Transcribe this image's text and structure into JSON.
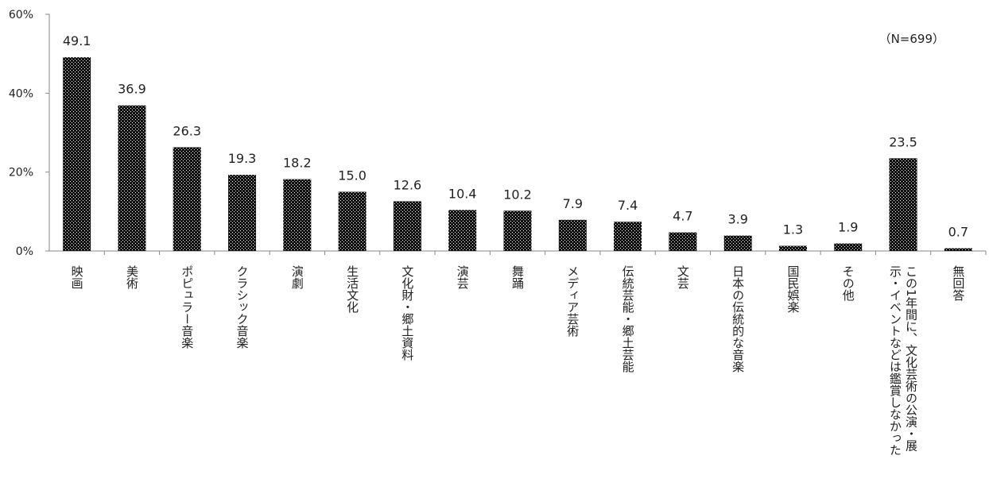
{
  "chart_data": {
    "type": "bar",
    "title": "",
    "xlabel": "",
    "ylabel": "",
    "note": "（N=699）",
    "ylim": [
      0,
      60
    ],
    "yticks": [
      0,
      20,
      40,
      60
    ],
    "ytick_labels": [
      "0%",
      "20%",
      "40%",
      "60%"
    ],
    "grid": false,
    "categories": [
      "映画",
      "美術",
      "ポピュラー音楽",
      "クラシック音楽",
      "演劇",
      "生活文化",
      "文化財・郷土資料",
      "演芸",
      "舞踊",
      "メディア芸術",
      "伝統芸能・郷土芸能",
      "文芸",
      "日本の伝統的な音楽",
      "国民娯楽",
      "その他",
      "この1年間に、文化芸術の公演・展示・イベントなどは鑑賞しなかった",
      "無回答"
    ],
    "category_lines": [
      [
        "映画"
      ],
      [
        "美術"
      ],
      [
        "ポピュラー音楽"
      ],
      [
        "クラシック音楽"
      ],
      [
        "演劇"
      ],
      [
        "生活文化"
      ],
      [
        "文化財・郷土資料"
      ],
      [
        "演芸"
      ],
      [
        "舞踊"
      ],
      [
        "メディア芸術"
      ],
      [
        "伝統芸能・郷土芸能"
      ],
      [
        "文芸"
      ],
      [
        "日本の伝統的な音楽"
      ],
      [
        "国民娯楽"
      ],
      [
        "その他"
      ],
      [
        "この1年間に、文化芸術の公演・展",
        "示・イベントなどは鑑賞しなかった"
      ],
      [
        "無回答"
      ]
    ],
    "values": [
      49.1,
      36.9,
      26.3,
      19.3,
      18.2,
      15.0,
      12.6,
      10.4,
      10.2,
      7.9,
      7.4,
      4.7,
      3.9,
      1.3,
      1.9,
      23.5,
      0.7
    ],
    "value_labels": [
      "49.1",
      "36.9",
      "26.3",
      "19.3",
      "18.2",
      "15.0",
      "12.6",
      "10.4",
      "10.2",
      "7.9",
      "7.4",
      "4.7",
      "3.9",
      "1.3",
      "1.9",
      "23.5",
      "0.7"
    ],
    "colors": {
      "bar": "#111111",
      "dot": "#ffffff",
      "axis": "#888888",
      "text": "#222222"
    }
  }
}
